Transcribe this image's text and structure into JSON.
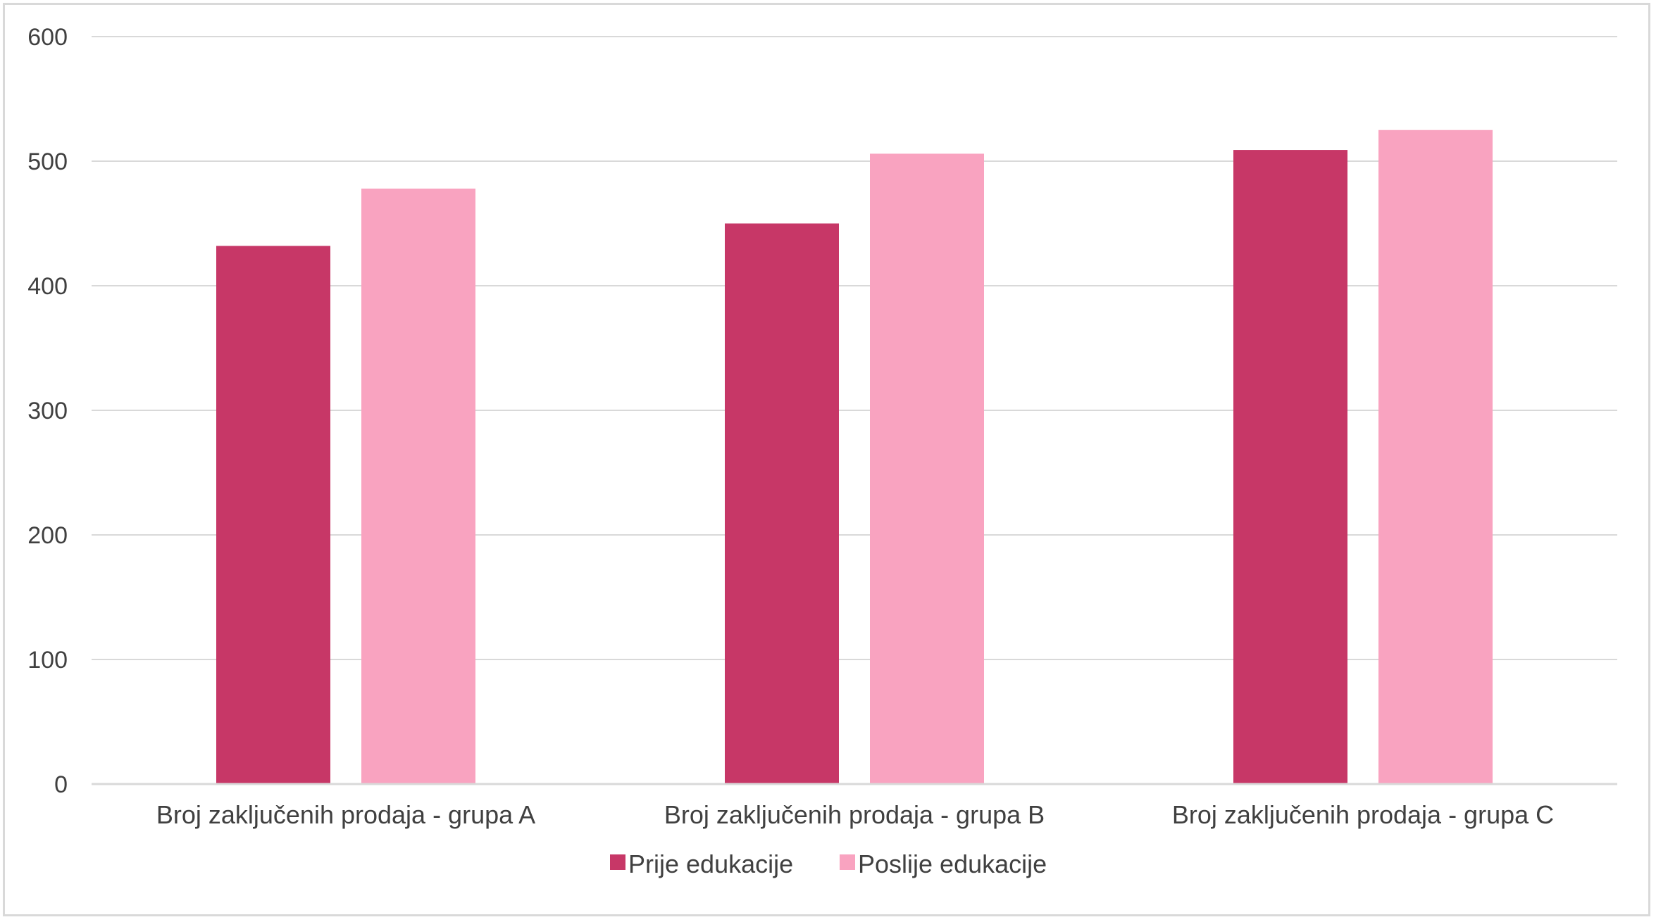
{
  "chart_data": {
    "type": "bar",
    "title": "",
    "xlabel": "",
    "ylabel": "",
    "categories": [
      "Broj zaključenih prodaja - grupa A",
      "Broj zaključenih prodaja - grupa B",
      "Broj zaključenih prodaja - grupa C"
    ],
    "series": [
      {
        "name": "Prije edukacije",
        "color": "#c73767",
        "values": [
          432,
          450,
          509
        ]
      },
      {
        "name": "Poslije edukacije",
        "color": "#f9a3c0",
        "values": [
          478,
          506,
          525
        ]
      }
    ],
    "ylim": [
      0,
      600
    ],
    "yticks": [
      0,
      100,
      200,
      300,
      400,
      500,
      600
    ],
    "grid": true,
    "gridColor": "#d9d9d9",
    "legend_position": "bottom"
  }
}
